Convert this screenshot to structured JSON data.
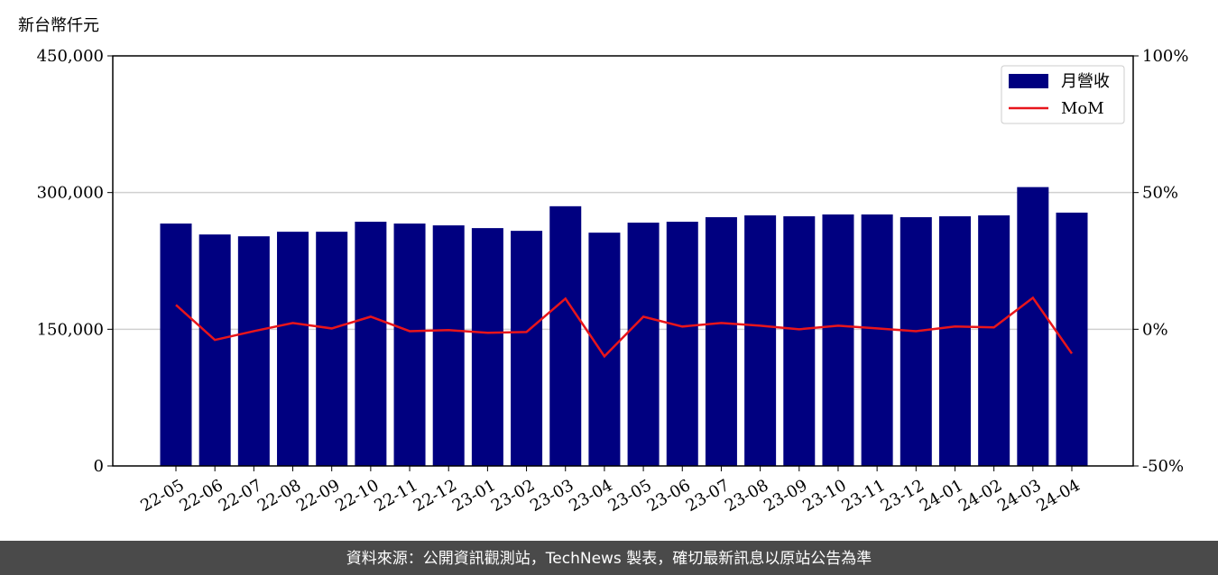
{
  "chart_data": {
    "type": "bar_line",
    "y_unit_label": "新台幣仟元",
    "categories": [
      "22-05",
      "22-06",
      "22-07",
      "22-08",
      "22-09",
      "22-10",
      "22-11",
      "22-12",
      "23-01",
      "23-02",
      "23-03",
      "23-04",
      "23-05",
      "23-06",
      "23-07",
      "23-08",
      "23-09",
      "23-10",
      "23-11",
      "23-12",
      "24-01",
      "24-02",
      "24-03",
      "24-04"
    ],
    "series": [
      {
        "name": "月營收",
        "type": "bar",
        "color": "#000080",
        "values": [
          266000,
          254000,
          252000,
          257000,
          257000,
          268000,
          266000,
          264000,
          261000,
          258000,
          285000,
          256000,
          267000,
          268000,
          273000,
          275000,
          274000,
          276000,
          276000,
          273000,
          274000,
          275000,
          306000,
          278000
        ]
      },
      {
        "name": "MoM",
        "type": "line",
        "axis": "y2",
        "color": "#e8151b",
        "values": [
          8.9,
          -3.9,
          -0.7,
          2.3,
          0.3,
          4.6,
          -0.7,
          -0.3,
          -1.3,
          -1.0,
          11.2,
          -9.9,
          4.6,
          1.0,
          2.3,
          1.3,
          0,
          1.3,
          0.3,
          -0.7,
          1.0,
          0.7,
          11.5,
          -8.9
        ]
      }
    ],
    "ylim": [
      0,
      450000
    ],
    "yticks": [
      0,
      {
        "value": 150000,
        "label": "150,000"
      },
      {
        "value": 300000,
        "label": "300,000"
      },
      {
        "value": 450000,
        "label": "450,000"
      }
    ],
    "y2lim": [
      -50,
      100
    ],
    "y2ticks": [
      {
        "value": -50,
        "label": "-50%"
      },
      {
        "value": 0,
        "label": "0%"
      },
      {
        "value": 50,
        "label": "50%"
      },
      {
        "value": 100,
        "label": "100%"
      }
    ],
    "grid": true,
    "legend": "upper right",
    "footer": "資料來源：公開資訊觀測站，TechNews 製表，確切最新訊息以原站公告為準"
  }
}
